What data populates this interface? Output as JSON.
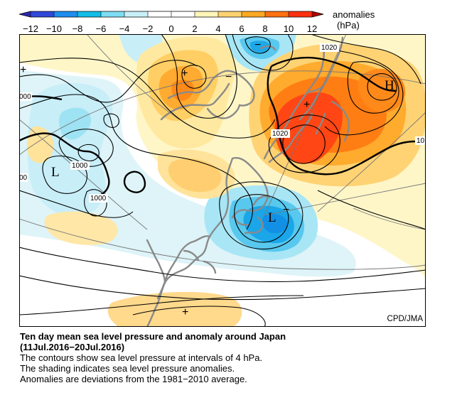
{
  "legend": {
    "ticks": [
      "−12",
      "−10",
      "−8",
      "−6",
      "−4",
      "−2",
      "0",
      "2",
      "4",
      "6",
      "8",
      "10",
      "12"
    ],
    "title": "anomalies",
    "unit": "(hPa)",
    "colors": [
      "#3048d8",
      "#1e8ef0",
      "#12bde8",
      "#7dddf2",
      "#c8f0f8",
      "#ffffff",
      "#ffffff",
      "#fff6b8",
      "#ffd270",
      "#ffa824",
      "#ff7010",
      "#ff3010"
    ]
  },
  "map": {
    "credit": "CPD/JMA",
    "contour_labels": [
      "1020",
      "1020",
      "1000",
      "1000",
      "000",
      "00",
      "10"
    ],
    "pressure_centers": [
      {
        "symbol": "H"
      },
      {
        "symbol": "L"
      },
      {
        "symbol": "L"
      }
    ],
    "anomaly_signs": [
      "+",
      "+",
      "+",
      "+",
      "−",
      "−",
      "−"
    ]
  },
  "caption": {
    "title": "Ten day mean sea level pressure and anomaly around Japan",
    "period": "(11Jul.2016−20Jul.2016)",
    "lines": [
      "The contours show sea level pressure at intervals of 4 hPa.",
      "The shading indicates sea level pressure anomalies.",
      "Anomalies are deviations from the 1981−2010 average."
    ]
  }
}
